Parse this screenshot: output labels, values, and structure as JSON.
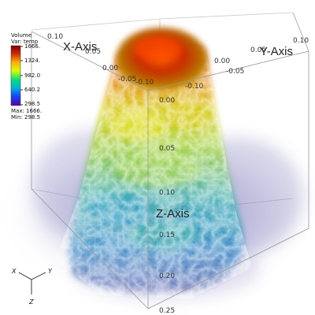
{
  "axes": {
    "x_title": "X-Axis",
    "y_title": "Y-Axis",
    "z_title": "Z-Axis"
  },
  "ticks": {
    "x": [
      "0.10",
      "0.05",
      "0.00",
      "-0.05",
      "-0.10"
    ],
    "y": [
      "0.10",
      "0.05",
      "0.00",
      "-0.05",
      "-0.10"
    ],
    "z": [
      "0.00",
      "0.05",
      "0.10",
      "0.15",
      "0.20",
      "0.25"
    ]
  },
  "legend": {
    "title_line1": "Volume",
    "title_line2": "Var: temp",
    "labels": [
      "1666.",
      "1324.",
      "982.0",
      "640.2",
      "298.5"
    ],
    "max_text": "Max: 1666.",
    "min_text": "Min: 298.5",
    "colors": [
      "#7a0000",
      "#d62b00",
      "#ffb000",
      "#d6ff00",
      "#00e07a",
      "#00b0e0",
      "#1840ff",
      "#5a00a0"
    ]
  },
  "triad": {
    "x_label": "X",
    "y_label": "Y",
    "z_label": "Z"
  }
}
